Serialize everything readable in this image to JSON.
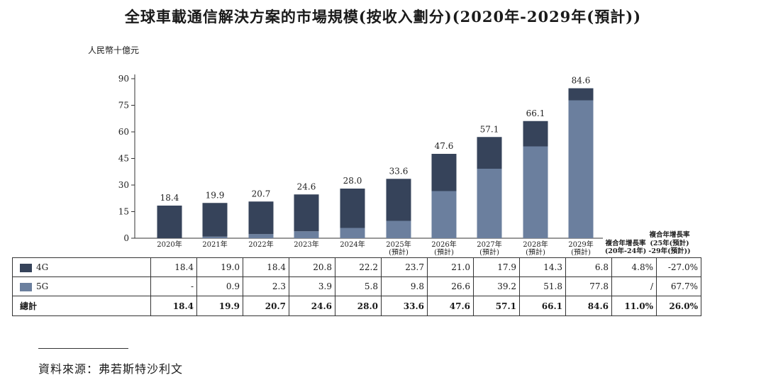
{
  "chart_data": {
    "type": "bar",
    "stacked": true,
    "title": "全球車載通信解決方案的市場規模(按收入劃分)(2020年-2029年(預計))",
    "ylabel": "人民幣十億元",
    "ylim": [
      0,
      90
    ],
    "yticks": [
      0,
      15,
      30,
      45,
      60,
      75,
      90
    ],
    "categories": [
      "2020年",
      "2021年",
      "2022年",
      "2023年",
      "2024年",
      "2025年",
      "2026年",
      "2027年",
      "2028年",
      "2029年"
    ],
    "category_notes": [
      "",
      "",
      "",
      "",
      "",
      "(預計)",
      "(預計)",
      "(預計)",
      "(預計)",
      "(預計)"
    ],
    "series": [
      {
        "name": "5G",
        "color": "#6b7f9e",
        "values": [
          0,
          0.9,
          2.3,
          3.9,
          5.8,
          9.8,
          26.6,
          39.2,
          51.8,
          77.8
        ],
        "labels": [
          "-",
          "0.9",
          "2.3",
          "3.9",
          "5.8",
          "9.8",
          "26.6",
          "39.2",
          "51.8",
          "77.8"
        ]
      },
      {
        "name": "4G",
        "color": "#36435a",
        "values": [
          18.4,
          19.0,
          18.4,
          20.8,
          22.2,
          23.7,
          21.0,
          17.9,
          14.3,
          6.8
        ],
        "labels": [
          "18.4",
          "19.0",
          "18.4",
          "20.8",
          "22.2",
          "23.7",
          "21.0",
          "17.9",
          "14.3",
          "6.8"
        ]
      }
    ],
    "totals": [
      "18.4",
      "19.9",
      "20.7",
      "24.6",
      "28.0",
      "33.6",
      "47.6",
      "57.1",
      "66.1",
      "84.6"
    ],
    "cagr_headers": [
      {
        "line1": "複合年增長率",
        "line2": "(20年-24年)"
      },
      {
        "line1": "複合年增長率",
        "line2": "(25年(預計)",
        "line3": "-29年(預計))"
      }
    ]
  },
  "table": {
    "rows": [
      {
        "label": "4G",
        "color": "#36435a",
        "values": [
          "18.4",
          "19.0",
          "18.4",
          "20.8",
          "22.2",
          "23.7",
          "21.0",
          "17.9",
          "14.3",
          "6.8"
        ],
        "cagr1": "4.8%",
        "cagr2": "-27.0%"
      },
      {
        "label": "5G",
        "color": "#6b7f9e",
        "values": [
          "-",
          "0.9",
          "2.3",
          "3.9",
          "5.8",
          "9.8",
          "26.6",
          "39.2",
          "51.8",
          "77.8"
        ],
        "cagr1": "/",
        "cagr2": "67.7%"
      },
      {
        "label": "總計",
        "values": [
          "18.4",
          "19.9",
          "20.7",
          "24.6",
          "28.0",
          "33.6",
          "47.6",
          "57.1",
          "66.1",
          "84.6"
        ],
        "cagr1": "11.0%",
        "cagr2": "26.0%"
      }
    ]
  },
  "footer": {
    "source": "資料來源：弗若斯特沙利文"
  }
}
